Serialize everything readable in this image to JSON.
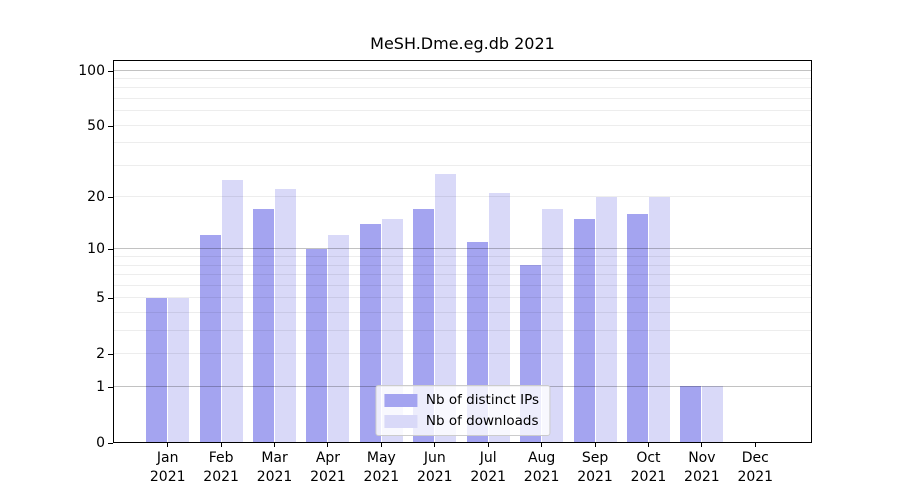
{
  "chart_data": {
    "type": "bar",
    "title": "MeSH.Dme.eg.db 2021",
    "categories": [
      "Jan",
      "Feb",
      "Mar",
      "Apr",
      "May",
      "Jun",
      "Jul",
      "Aug",
      "Sep",
      "Oct",
      "Nov",
      "Dec"
    ],
    "x_year": "2021",
    "series": [
      {
        "name": "Nb of distinct IPs",
        "color": "#a4a4f0",
        "values": [
          5,
          12,
          17,
          10,
          14,
          17,
          11,
          8,
          15,
          16,
          1,
          0
        ]
      },
      {
        "name": "Nb of downloads",
        "color": "#d9d9f8",
        "values": [
          5,
          25,
          22,
          12,
          15,
          27,
          21,
          17,
          20,
          20,
          1,
          0
        ]
      }
    ],
    "yscale": "log1p",
    "ytick_labels": [
      0,
      1,
      2,
      5,
      10,
      20,
      50,
      100
    ],
    "ylim": [
      0,
      115
    ],
    "grid": {
      "major_at": [
        1,
        10,
        100
      ],
      "minor_at": "2-9, 20-90",
      "drawn_above_bars": true,
      "major_color": "#c3c3c3",
      "minor_color": "#ededed"
    },
    "frame_color": "#000000",
    "legend_position": "lower center"
  }
}
